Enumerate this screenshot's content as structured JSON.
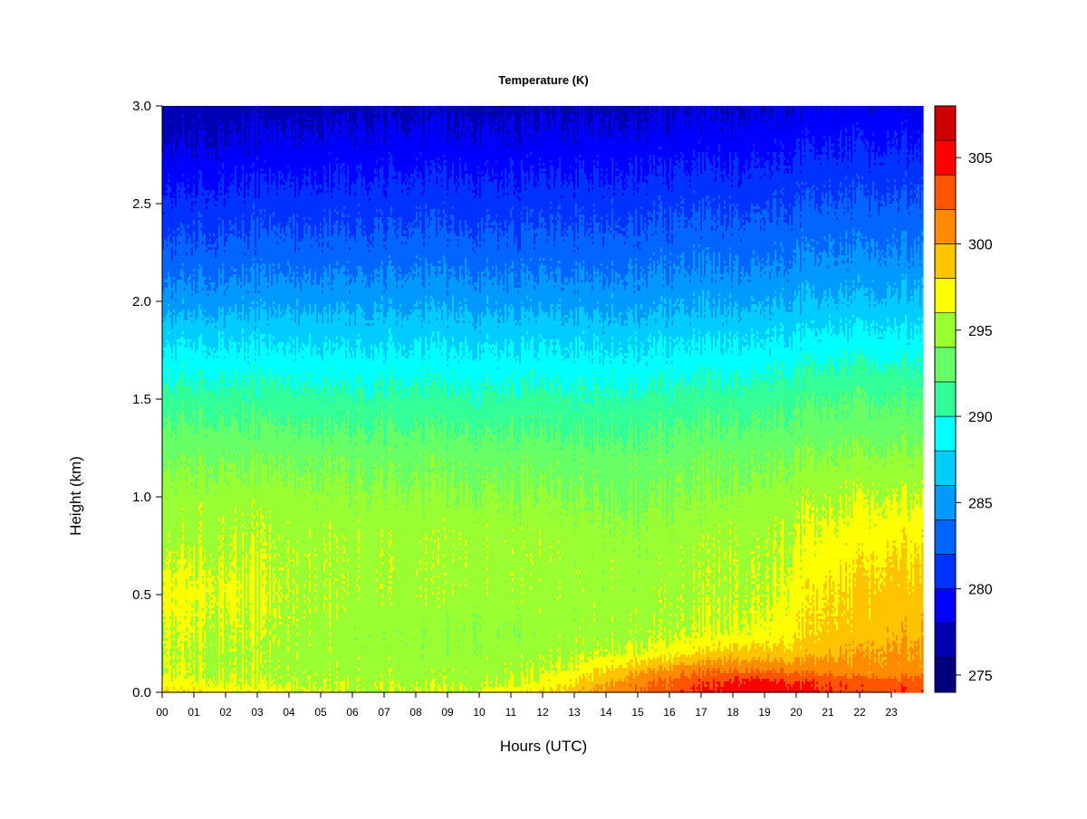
{
  "chart_data": {
    "type": "heatmap",
    "title": "Temperature (K)",
    "xlabel": "Hours (UTC)",
    "ylabel": "Height (km)",
    "x": [
      "00",
      "01",
      "02",
      "03",
      "04",
      "05",
      "06",
      "07",
      "08",
      "09",
      "10",
      "11",
      "12",
      "13",
      "14",
      "15",
      "16",
      "17",
      "18",
      "19",
      "20",
      "21",
      "22",
      "23"
    ],
    "y": [
      0.0,
      0.5,
      1.0,
      1.5,
      2.0,
      2.5,
      3.0
    ],
    "y_tick_labels": [
      "0.0",
      "0.5",
      "1.0",
      "1.5",
      "2.0",
      "2.5",
      "3.0"
    ],
    "xlim": [
      0,
      24
    ],
    "ylim": [
      0,
      3
    ],
    "colorbar": {
      "label_values": [
        275,
        280,
        285,
        290,
        295,
        300,
        305
      ],
      "labels": [
        "275",
        "280",
        "285",
        "290",
        "295",
        "300",
        "305"
      ],
      "range": [
        274,
        308
      ],
      "levels": [
        274,
        276,
        278,
        280,
        282,
        284,
        286,
        288,
        290,
        292,
        294,
        296,
        298,
        300,
        302,
        304,
        306,
        308
      ],
      "colors": [
        "#00007F",
        "#0000B2",
        "#0000FF",
        "#0032FF",
        "#0066FF",
        "#0099FF",
        "#00CCFF",
        "#00FFFF",
        "#33FF99",
        "#66FF66",
        "#99FF33",
        "#FFFF00",
        "#FFC300",
        "#FF8C00",
        "#FF5500",
        "#FF0000",
        "#CC0000",
        "#800000"
      ]
    },
    "temperature_field_K": {
      "hours": [
        0,
        2,
        4,
        6,
        8,
        10,
        12,
        13,
        14,
        15,
        16,
        17,
        18,
        19,
        20,
        21,
        22,
        23,
        24
      ],
      "heights_km": [
        0.0,
        0.05,
        0.1,
        0.2,
        0.3,
        0.5,
        0.8,
        1.0,
        1.2,
        1.5,
        1.8,
        2.0,
        2.2,
        2.5,
        2.8,
        3.0
      ],
      "values": [
        [
          298.5,
          297.0,
          296.5,
          296.0,
          296.0,
          296.0,
          298.0,
          299.0,
          301.0,
          302.0,
          303.0,
          304.0,
          305.5,
          306.0,
          305.0,
          304.0,
          303.5,
          303.5,
          303.5
        ],
        [
          297.0,
          296.2,
          295.8,
          295.5,
          295.5,
          295.5,
          296.5,
          298.0,
          300.0,
          301.5,
          302.5,
          303.5,
          304.5,
          305.0,
          304.0,
          303.5,
          303.0,
          303.0,
          303.0
        ],
        [
          296.2,
          295.8,
          295.5,
          295.3,
          295.2,
          295.2,
          295.8,
          296.8,
          298.5,
          300.0,
          301.0,
          302.0,
          302.5,
          302.5,
          302.0,
          301.5,
          301.0,
          301.0,
          301.0
        ],
        [
          296.0,
          295.6,
          295.3,
          295.1,
          294.8,
          294.8,
          295.1,
          295.5,
          296.0,
          296.5,
          297.0,
          298.0,
          299.0,
          299.0,
          299.0,
          299.5,
          300.0,
          300.5,
          300.5
        ],
        [
          296.2,
          296.0,
          295.5,
          295.0,
          294.6,
          294.6,
          294.8,
          295.0,
          295.2,
          295.5,
          295.6,
          296.0,
          296.5,
          296.8,
          297.5,
          298.5,
          299.0,
          299.5,
          299.5
        ],
        [
          296.8,
          296.5,
          295.8,
          295.5,
          295.2,
          295.1,
          295.0,
          295.0,
          295.0,
          295.0,
          295.2,
          295.5,
          295.8,
          296.0,
          297.0,
          298.0,
          298.5,
          299.0,
          299.0
        ],
        [
          295.5,
          295.6,
          295.5,
          295.4,
          295.3,
          295.3,
          295.2,
          295.0,
          294.8,
          294.8,
          295.0,
          295.2,
          295.5,
          295.6,
          296.0,
          296.5,
          297.0,
          297.5,
          297.5
        ],
        [
          294.8,
          295.0,
          294.8,
          294.6,
          294.4,
          294.3,
          294.2,
          294.0,
          293.8,
          293.8,
          294.0,
          294.2,
          294.6,
          294.8,
          295.2,
          295.5,
          296.0,
          296.0,
          296.0
        ],
        [
          293.8,
          293.8,
          293.6,
          293.5,
          293.3,
          293.2,
          293.1,
          293.0,
          293.0,
          293.0,
          293.2,
          293.4,
          293.6,
          293.8,
          294.0,
          294.2,
          294.3,
          294.5,
          294.5
        ],
        [
          291.0,
          291.0,
          290.8,
          290.7,
          290.6,
          290.5,
          290.5,
          290.4,
          290.4,
          290.5,
          290.7,
          290.9,
          291.1,
          291.3,
          291.5,
          291.8,
          292.0,
          292.0,
          292.0
        ],
        [
          287.8,
          287.8,
          287.7,
          287.6,
          287.6,
          287.5,
          287.5,
          287.5,
          287.5,
          287.6,
          287.7,
          287.8,
          288.0,
          288.2,
          288.4,
          288.6,
          288.8,
          288.8,
          288.8
        ],
        [
          285.0,
          285.2,
          285.3,
          285.4,
          285.4,
          285.3,
          285.2,
          285.2,
          285.2,
          285.3,
          285.4,
          285.5,
          285.6,
          285.8,
          286.0,
          286.2,
          286.4,
          286.5,
          286.5
        ],
        [
          283.0,
          283.2,
          283.3,
          283.4,
          283.4,
          283.3,
          283.3,
          283.3,
          283.4,
          283.5,
          283.6,
          283.7,
          283.8,
          284.0,
          284.2,
          284.4,
          284.5,
          284.6,
          284.6
        ],
        [
          280.5,
          280.8,
          281.0,
          281.1,
          281.1,
          281.0,
          281.0,
          281.1,
          281.2,
          281.3,
          281.4,
          281.5,
          281.6,
          281.8,
          282.0,
          282.2,
          282.3,
          282.4,
          282.4
        ],
        [
          278.0,
          278.3,
          278.6,
          278.8,
          278.8,
          278.7,
          278.6,
          278.7,
          278.8,
          278.9,
          279.0,
          279.1,
          279.2,
          279.4,
          279.6,
          279.8,
          279.9,
          280.0,
          280.0
        ],
        [
          276.8,
          277.0,
          277.2,
          277.4,
          277.4,
          277.3,
          277.3,
          277.4,
          277.5,
          277.6,
          277.7,
          277.8,
          277.9,
          278.0,
          278.2,
          278.4,
          278.5,
          278.6,
          278.6
        ]
      ]
    },
    "grid": false,
    "legend": "colorbar-right"
  }
}
